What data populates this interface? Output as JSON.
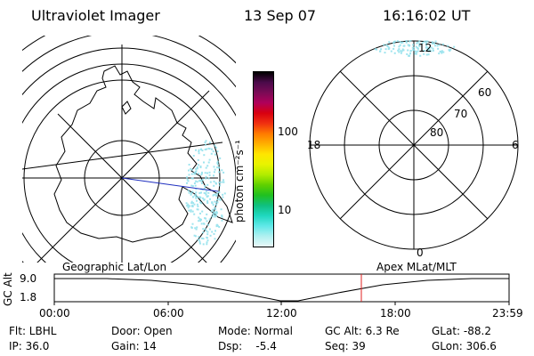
{
  "header": {
    "title": "Ultraviolet Imager",
    "date": "13 Sep 07",
    "time": "16:16:02 UT"
  },
  "colorbar": {
    "unit_label": "photon cm⁻²s⁻¹",
    "tick_100": "100",
    "tick_10": "10",
    "colors": [
      "#000000",
      "#4b0a4a",
      "#7a0a55",
      "#b0005a",
      "#d80010",
      "#f03010",
      "#ff7a00",
      "#ffb000",
      "#ffe600",
      "#e8f300",
      "#b2ec00",
      "#60d000",
      "#20c020",
      "#10c080",
      "#20d8c0",
      "#60e8e8",
      "#b0f0f0",
      "#e8f8f8"
    ]
  },
  "left_panel": {
    "name": "geographic-map",
    "label": "Geographic Lat/Lon"
  },
  "right_panel": {
    "name": "apex-polar-grid",
    "label": "Apex MLat/MLT",
    "mlt_12": "12",
    "mlt_18": "18",
    "mlt_6": "6",
    "mlt_0": "0",
    "lat_60": "60",
    "lat_70": "70",
    "lat_80": "80"
  },
  "timeline": {
    "ylabel": "GC Alt",
    "ytick_top": "9.0",
    "ytick_bottom": "1.8",
    "xticks": [
      "00:00",
      "06:00",
      "12:00",
      "18:00",
      "23:59"
    ],
    "marker_color": "#e02020"
  },
  "status": {
    "flt": "Flt: LBHL",
    "ip": "IP: 36.0",
    "door": "Door: Open",
    "gain": "Gain: 14",
    "mode": "Mode: Normal",
    "dsp": "Dsp:    -5.4",
    "gc_alt": "GC Alt: 6.3 Re",
    "seq": "Seq: 39",
    "glat": "GLat: -88.2",
    "glon": "GLon: 306.6"
  }
}
